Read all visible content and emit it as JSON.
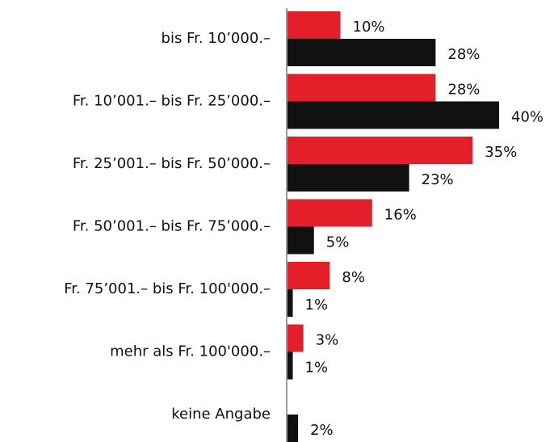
{
  "chart_data": {
    "type": "barh",
    "categories": [
      "bis Fr. 10’000.–",
      "Fr. 10’001.– bis Fr. 25’000.–",
      "Fr. 25’001.– bis Fr. 50’000.–",
      "Fr. 50’001.– bis Fr. 75’000.–",
      "Fr. 75’001.– bis Fr. 100'000.–",
      "mehr als Fr. 100'000.–",
      "keine Angabe"
    ],
    "series": [
      {
        "color": "#e3202a",
        "values": [
          10,
          28,
          35,
          16,
          8,
          3,
          null
        ],
        "value_labels": [
          "10%",
          "28%",
          "35%",
          "16%",
          "8%",
          "3%",
          null
        ]
      },
      {
        "color": "#111111",
        "values": [
          28,
          40,
          23,
          5,
          1,
          1,
          2
        ],
        "value_labels": [
          "28%",
          "40%",
          "23%",
          "5%",
          "1%",
          "1%",
          "2%"
        ]
      }
    ]
  }
}
